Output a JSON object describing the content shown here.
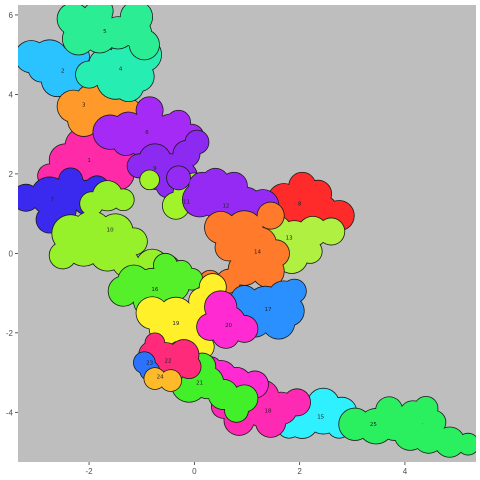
{
  "chart_data": {
    "type": "scatter",
    "title": "",
    "xlabel": "",
    "ylabel": "",
    "xlim": [
      -3.35,
      5.35
    ],
    "ylim": [
      -5.25,
      6.25
    ],
    "x_ticks": [
      -2,
      0,
      2,
      4
    ],
    "y_ticks": [
      -4,
      -2,
      0,
      2,
      4,
      6
    ],
    "panel_background": "#bebebe",
    "grid": false,
    "legend": "none",
    "regions": [
      {
        "label": "1",
        "color": "#ff2aa8",
        "label_at": [
          -2.0,
          2.35
        ],
        "blobs": [
          [
            -2.1,
            2.7,
            0.35
          ],
          [
            -1.65,
            2.5,
            0.32
          ],
          [
            -2.45,
            2.35,
            0.3
          ],
          [
            -1.9,
            2.05,
            0.35
          ],
          [
            -1.45,
            2.0,
            0.3
          ],
          [
            -2.75,
            1.95,
            0.22
          ],
          [
            -1.2,
            2.55,
            0.22
          ],
          [
            -1.35,
            2.3,
            0.22
          ]
        ]
      },
      {
        "label": "2",
        "color": "#2bc3ff",
        "label_at": [
          -2.5,
          4.6
        ],
        "blobs": [
          [
            -3.1,
            4.95,
            0.3
          ],
          [
            -2.75,
            4.9,
            0.35
          ],
          [
            -2.35,
            4.6,
            0.38
          ],
          [
            -2.05,
            4.3,
            0.32
          ],
          [
            -2.6,
            4.35,
            0.3
          ],
          [
            -2.9,
            4.65,
            0.25
          ],
          [
            -2.25,
            4.95,
            0.25
          ]
        ]
      },
      {
        "label": "3",
        "color": "#ff9a2a",
        "label_at": [
          -2.1,
          3.75
        ],
        "blobs": [
          [
            -2.3,
            3.7,
            0.3
          ],
          [
            -1.95,
            3.85,
            0.3
          ],
          [
            -1.55,
            3.7,
            0.32
          ],
          [
            -1.25,
            3.55,
            0.25
          ],
          [
            -2.1,
            3.35,
            0.3
          ],
          [
            -1.7,
            3.3,
            0.3
          ],
          [
            -1.85,
            4.15,
            0.22
          ]
        ]
      },
      {
        "label": "4",
        "color": "#26eeb2",
        "label_at": [
          -1.4,
          4.65
        ],
        "blobs": [
          [
            -1.7,
            4.75,
            0.3
          ],
          [
            -1.3,
            4.95,
            0.3
          ],
          [
            -0.95,
            5.0,
            0.32
          ],
          [
            -1.5,
            4.35,
            0.35
          ],
          [
            -1.05,
            4.45,
            0.28
          ],
          [
            -2.0,
            4.5,
            0.25
          ],
          [
            -1.25,
            4.2,
            0.28
          ]
        ]
      },
      {
        "label": "5",
        "color": "#2bee94",
        "label_at": [
          -1.7,
          5.6
        ],
        "blobs": [
          [
            -2.3,
            5.9,
            0.3
          ],
          [
            -1.85,
            5.95,
            0.28
          ],
          [
            -1.8,
            5.45,
            0.3
          ],
          [
            -1.45,
            5.55,
            0.3
          ],
          [
            -1.1,
            5.55,
            0.28
          ],
          [
            -2.2,
            5.4,
            0.3
          ],
          [
            -1.8,
            6.1,
            0.25
          ],
          [
            -1.1,
            5.95,
            0.3
          ],
          [
            -0.95,
            5.25,
            0.28
          ]
        ]
      },
      {
        "label": "6",
        "color": "#a62af5",
        "label_at": [
          -0.9,
          3.05
        ],
        "blobs": [
          [
            -1.6,
            3.05,
            0.32
          ],
          [
            -1.25,
            3.15,
            0.3
          ],
          [
            -0.85,
            3.15,
            0.33
          ],
          [
            -0.45,
            3.1,
            0.3
          ],
          [
            -0.9,
            2.75,
            0.3
          ],
          [
            -0.5,
            2.7,
            0.25
          ],
          [
            -0.85,
            3.6,
            0.25
          ],
          [
            -0.3,
            3.3,
            0.22
          ],
          [
            -0.05,
            2.95,
            0.22
          ],
          [
            -1.3,
            2.8,
            0.25
          ]
        ]
      },
      {
        "label": "7",
        "color": "#3a2af0",
        "label_at": [
          -2.7,
          1.35
        ],
        "blobs": [
          [
            -2.75,
            1.45,
            0.35
          ],
          [
            -2.35,
            1.6,
            0.3
          ],
          [
            -2.0,
            1.4,
            0.33
          ],
          [
            -3.2,
            1.4,
            0.25
          ],
          [
            -2.55,
            1.1,
            0.3
          ],
          [
            -2.75,
            0.85,
            0.25
          ],
          [
            -2.35,
            1.85,
            0.22
          ],
          [
            -1.85,
            1.65,
            0.22
          ]
        ]
      },
      {
        "label": "8",
        "color": "#ff2a2a",
        "label_at": [
          2.0,
          1.25
        ],
        "blobs": [
          [
            2.0,
            1.25,
            0.35
          ],
          [
            2.4,
            1.05,
            0.32
          ],
          [
            2.75,
            0.95,
            0.28
          ],
          [
            2.0,
            0.9,
            0.3
          ],
          [
            1.7,
            1.35,
            0.3
          ],
          [
            2.35,
            1.5,
            0.25
          ],
          [
            2.05,
            1.7,
            0.25
          ]
        ]
      },
      {
        "label": "9",
        "color": "#8c2af2",
        "label_at": [
          -0.75,
          2.15
        ],
        "blobs": [
          [
            -0.75,
            2.35,
            0.3
          ],
          [
            -0.45,
            2.1,
            0.3
          ],
          [
            -0.75,
            1.95,
            0.25
          ],
          [
            -1.05,
            2.2,
            0.22
          ],
          [
            -0.2,
            1.95,
            0.25
          ],
          [
            -0.15,
            2.5,
            0.25
          ],
          [
            0.05,
            2.8,
            0.22
          ],
          [
            -0.5,
            1.7,
            0.22
          ],
          [
            -0.15,
            1.7,
            0.2
          ]
        ]
      },
      {
        "label": "10",
        "color": "#96f02a",
        "label_at": [
          -1.6,
          0.6
        ],
        "blobs": [
          [
            -2.35,
            0.5,
            0.35
          ],
          [
            -1.95,
            0.55,
            0.38
          ],
          [
            -1.5,
            0.55,
            0.33
          ],
          [
            -1.15,
            0.3,
            0.25
          ],
          [
            -2.1,
            0.15,
            0.35
          ],
          [
            -1.65,
            0.0,
            0.33
          ],
          [
            -2.5,
            -0.05,
            0.25
          ],
          [
            -1.3,
            -0.25,
            0.25
          ],
          [
            -1.65,
            1.45,
            0.28
          ],
          [
            -1.95,
            1.25,
            0.22
          ],
          [
            -1.35,
            1.35,
            0.2
          ],
          [
            -0.8,
            -0.3,
            0.3
          ],
          [
            -0.5,
            -0.35,
            0.22
          ],
          [
            -1.15,
            -0.6,
            0.22
          ]
        ]
      },
      {
        "label": "11",
        "color": "#a2f42a",
        "label_at": [
          -0.15,
          1.3
        ],
        "blobs": [
          [
            -0.15,
            1.5,
            0.25
          ],
          [
            -0.35,
            1.2,
            0.25
          ],
          [
            -0.85,
            1.85,
            0.18
          ],
          [
            0.0,
            1.75,
            0.2
          ]
        ]
      },
      {
        "label": "12",
        "color": "#962af5",
        "label_at": [
          0.6,
          1.2
        ],
        "blobs": [
          [
            0.1,
            1.35,
            0.32
          ],
          [
            0.5,
            1.3,
            0.35
          ],
          [
            0.95,
            1.2,
            0.35
          ],
          [
            1.3,
            1.2,
            0.3
          ],
          [
            0.6,
            0.9,
            0.3
          ],
          [
            0.15,
            1.7,
            0.25
          ],
          [
            0.4,
            1.8,
            0.25
          ],
          [
            0.75,
            1.7,
            0.25
          ],
          [
            -0.3,
            1.9,
            0.22
          ]
        ]
      },
      {
        "label": "13",
        "color": "#b0f040",
        "label_at": [
          1.8,
          0.4
        ],
        "blobs": [
          [
            1.55,
            0.55,
            0.3
          ],
          [
            1.9,
            0.35,
            0.35
          ],
          [
            2.25,
            0.55,
            0.28
          ],
          [
            1.85,
            -0.1,
            0.3
          ],
          [
            1.6,
            0.1,
            0.25
          ],
          [
            2.6,
            0.55,
            0.25
          ],
          [
            2.2,
            0.05,
            0.22
          ]
        ]
      },
      {
        "label": "14",
        "color": "#ff7a2a",
        "label_at": [
          1.2,
          0.05
        ],
        "blobs": [
          [
            0.5,
            0.65,
            0.3
          ],
          [
            0.95,
            0.6,
            0.35
          ],
          [
            1.25,
            0.25,
            0.3
          ],
          [
            1.0,
            0.0,
            0.3
          ],
          [
            0.65,
            0.15,
            0.25
          ],
          [
            1.4,
            -0.45,
            0.3
          ],
          [
            0.95,
            -0.4,
            0.3
          ],
          [
            0.65,
            -0.7,
            0.22
          ],
          [
            0.3,
            -0.7,
            0.2
          ],
          [
            1.45,
            0.95,
            0.25
          ],
          [
            1.55,
            0.0,
            0.25
          ]
        ]
      },
      {
        "label": "15",
        "color": "#2ff0ff",
        "label_at": [
          2.4,
          -4.1
        ],
        "blobs": [
          [
            2.05,
            -4.25,
            0.3
          ],
          [
            2.45,
            -4.1,
            0.33
          ],
          [
            2.8,
            -4.0,
            0.28
          ],
          [
            2.45,
            -3.8,
            0.3
          ],
          [
            1.8,
            -4.35,
            0.22
          ],
          [
            2.75,
            -4.35,
            0.22
          ]
        ]
      },
      {
        "label": "16",
        "color": "#55f02a",
        "label_at": [
          -0.75,
          -0.9
        ],
        "blobs": [
          [
            -1.15,
            -0.7,
            0.3
          ],
          [
            -0.8,
            -0.85,
            0.35
          ],
          [
            -0.4,
            -0.8,
            0.3
          ],
          [
            -1.35,
            -0.95,
            0.28
          ],
          [
            -0.85,
            -1.2,
            0.3
          ],
          [
            -0.25,
            -0.45,
            0.2
          ],
          [
            -0.05,
            -0.65,
            0.2
          ],
          [
            -0.55,
            -0.3,
            0.22
          ]
        ]
      },
      {
        "label": "17",
        "color": "#2a90ff",
        "label_at": [
          1.4,
          -1.4
        ],
        "blobs": [
          [
            1.35,
            -1.3,
            0.35
          ],
          [
            1.7,
            -1.1,
            0.3
          ],
          [
            1.8,
            -1.45,
            0.28
          ],
          [
            1.15,
            -1.7,
            0.3
          ],
          [
            1.6,
            -1.75,
            0.3
          ],
          [
            0.95,
            -1.15,
            0.25
          ],
          [
            1.9,
            -0.95,
            0.22
          ]
        ]
      },
      {
        "label": "18",
        "color": "#ff2ab4",
        "label_at": [
          1.4,
          -3.95
        ],
        "blobs": [
          [
            0.9,
            -3.95,
            0.33
          ],
          [
            1.3,
            -3.9,
            0.35
          ],
          [
            1.65,
            -3.9,
            0.3
          ],
          [
            1.3,
            -3.6,
            0.3
          ],
          [
            0.85,
            -4.2,
            0.28
          ],
          [
            1.45,
            -4.25,
            0.28
          ],
          [
            1.95,
            -3.75,
            0.25
          ],
          [
            0.55,
            -3.85,
            0.22
          ]
        ]
      },
      {
        "label": "19",
        "color": "#fff02a",
        "label_at": [
          -0.35,
          -1.75
        ],
        "blobs": [
          [
            -0.8,
            -1.5,
            0.3
          ],
          [
            -0.35,
            -1.55,
            0.33
          ],
          [
            0.05,
            -1.55,
            0.25
          ],
          [
            -0.55,
            -1.9,
            0.3
          ],
          [
            -0.15,
            -1.95,
            0.25
          ],
          [
            0.15,
            -1.2,
            0.25
          ],
          [
            0.35,
            -0.85,
            0.25
          ],
          [
            -0.15,
            -2.3,
            0.22
          ],
          [
            0.15,
            -2.35,
            0.22
          ]
        ]
      },
      {
        "label": "20",
        "color": "#ff2ad2",
        "label_at": [
          0.65,
          -1.8
        ],
        "blobs": [
          [
            0.5,
            -1.35,
            0.3
          ],
          [
            0.65,
            -1.75,
            0.32
          ],
          [
            0.3,
            -1.85,
            0.25
          ],
          [
            0.95,
            -1.9,
            0.25
          ],
          [
            0.6,
            -2.05,
            0.25
          ],
          [
            0.5,
            -3.1,
            0.3
          ],
          [
            0.8,
            -3.25,
            0.28
          ],
          [
            1.15,
            -3.3,
            0.25
          ],
          [
            0.3,
            -2.9,
            0.22
          ]
        ]
      },
      {
        "label": "21",
        "color": "#42f02a",
        "label_at": [
          0.1,
          -3.25
        ],
        "blobs": [
          [
            -0.1,
            -3.3,
            0.33
          ],
          [
            0.25,
            -3.25,
            0.3
          ],
          [
            0.55,
            -3.55,
            0.28
          ],
          [
            -0.3,
            -3.0,
            0.28
          ],
          [
            0.15,
            -2.85,
            0.25
          ],
          [
            0.95,
            -3.65,
            0.25
          ],
          [
            0.8,
            -3.95,
            0.22
          ]
        ]
      },
      {
        "label": "22",
        "color": "#ff2a7a",
        "label_at": [
          -0.5,
          -2.7
        ],
        "blobs": [
          [
            -0.55,
            -2.65,
            0.3
          ],
          [
            -0.2,
            -2.55,
            0.28
          ],
          [
            -0.8,
            -2.55,
            0.25
          ],
          [
            -0.45,
            -2.95,
            0.25
          ],
          [
            -0.1,
            -2.85,
            0.22
          ],
          [
            -0.75,
            -2.25,
            0.18
          ]
        ]
      },
      {
        "label": "23",
        "color": "#2a72ff",
        "label_at": [
          -0.85,
          -2.75
        ],
        "blobs": [
          [
            -0.95,
            -2.75,
            0.2
          ],
          [
            -0.85,
            -2.95,
            0.18
          ]
        ]
      },
      {
        "label": "24",
        "color": "#ffba2a",
        "label_at": [
          -0.65,
          -3.1
        ],
        "blobs": [
          [
            -0.75,
            -3.15,
            0.2
          ],
          [
            -0.45,
            -3.2,
            0.2
          ]
        ]
      },
      {
        "label": "25",
        "color": "#2af060",
        "label_at": [
          3.4,
          -4.3
        ],
        "blobs": [
          [
            3.05,
            -4.3,
            0.3
          ],
          [
            3.45,
            -4.35,
            0.33
          ],
          [
            3.8,
            -4.3,
            0.3
          ],
          [
            4.1,
            -4.55,
            0.3
          ],
          [
            4.45,
            -4.65,
            0.28
          ],
          [
            4.85,
            -4.75,
            0.28
          ],
          [
            5.2,
            -4.8,
            0.2
          ],
          [
            3.7,
            -3.95,
            0.25
          ],
          [
            4.15,
            -4.05,
            0.25
          ],
          [
            4.4,
            -3.9,
            0.22
          ],
          [
            4.55,
            -4.25,
            0.22
          ]
        ]
      }
    ]
  }
}
